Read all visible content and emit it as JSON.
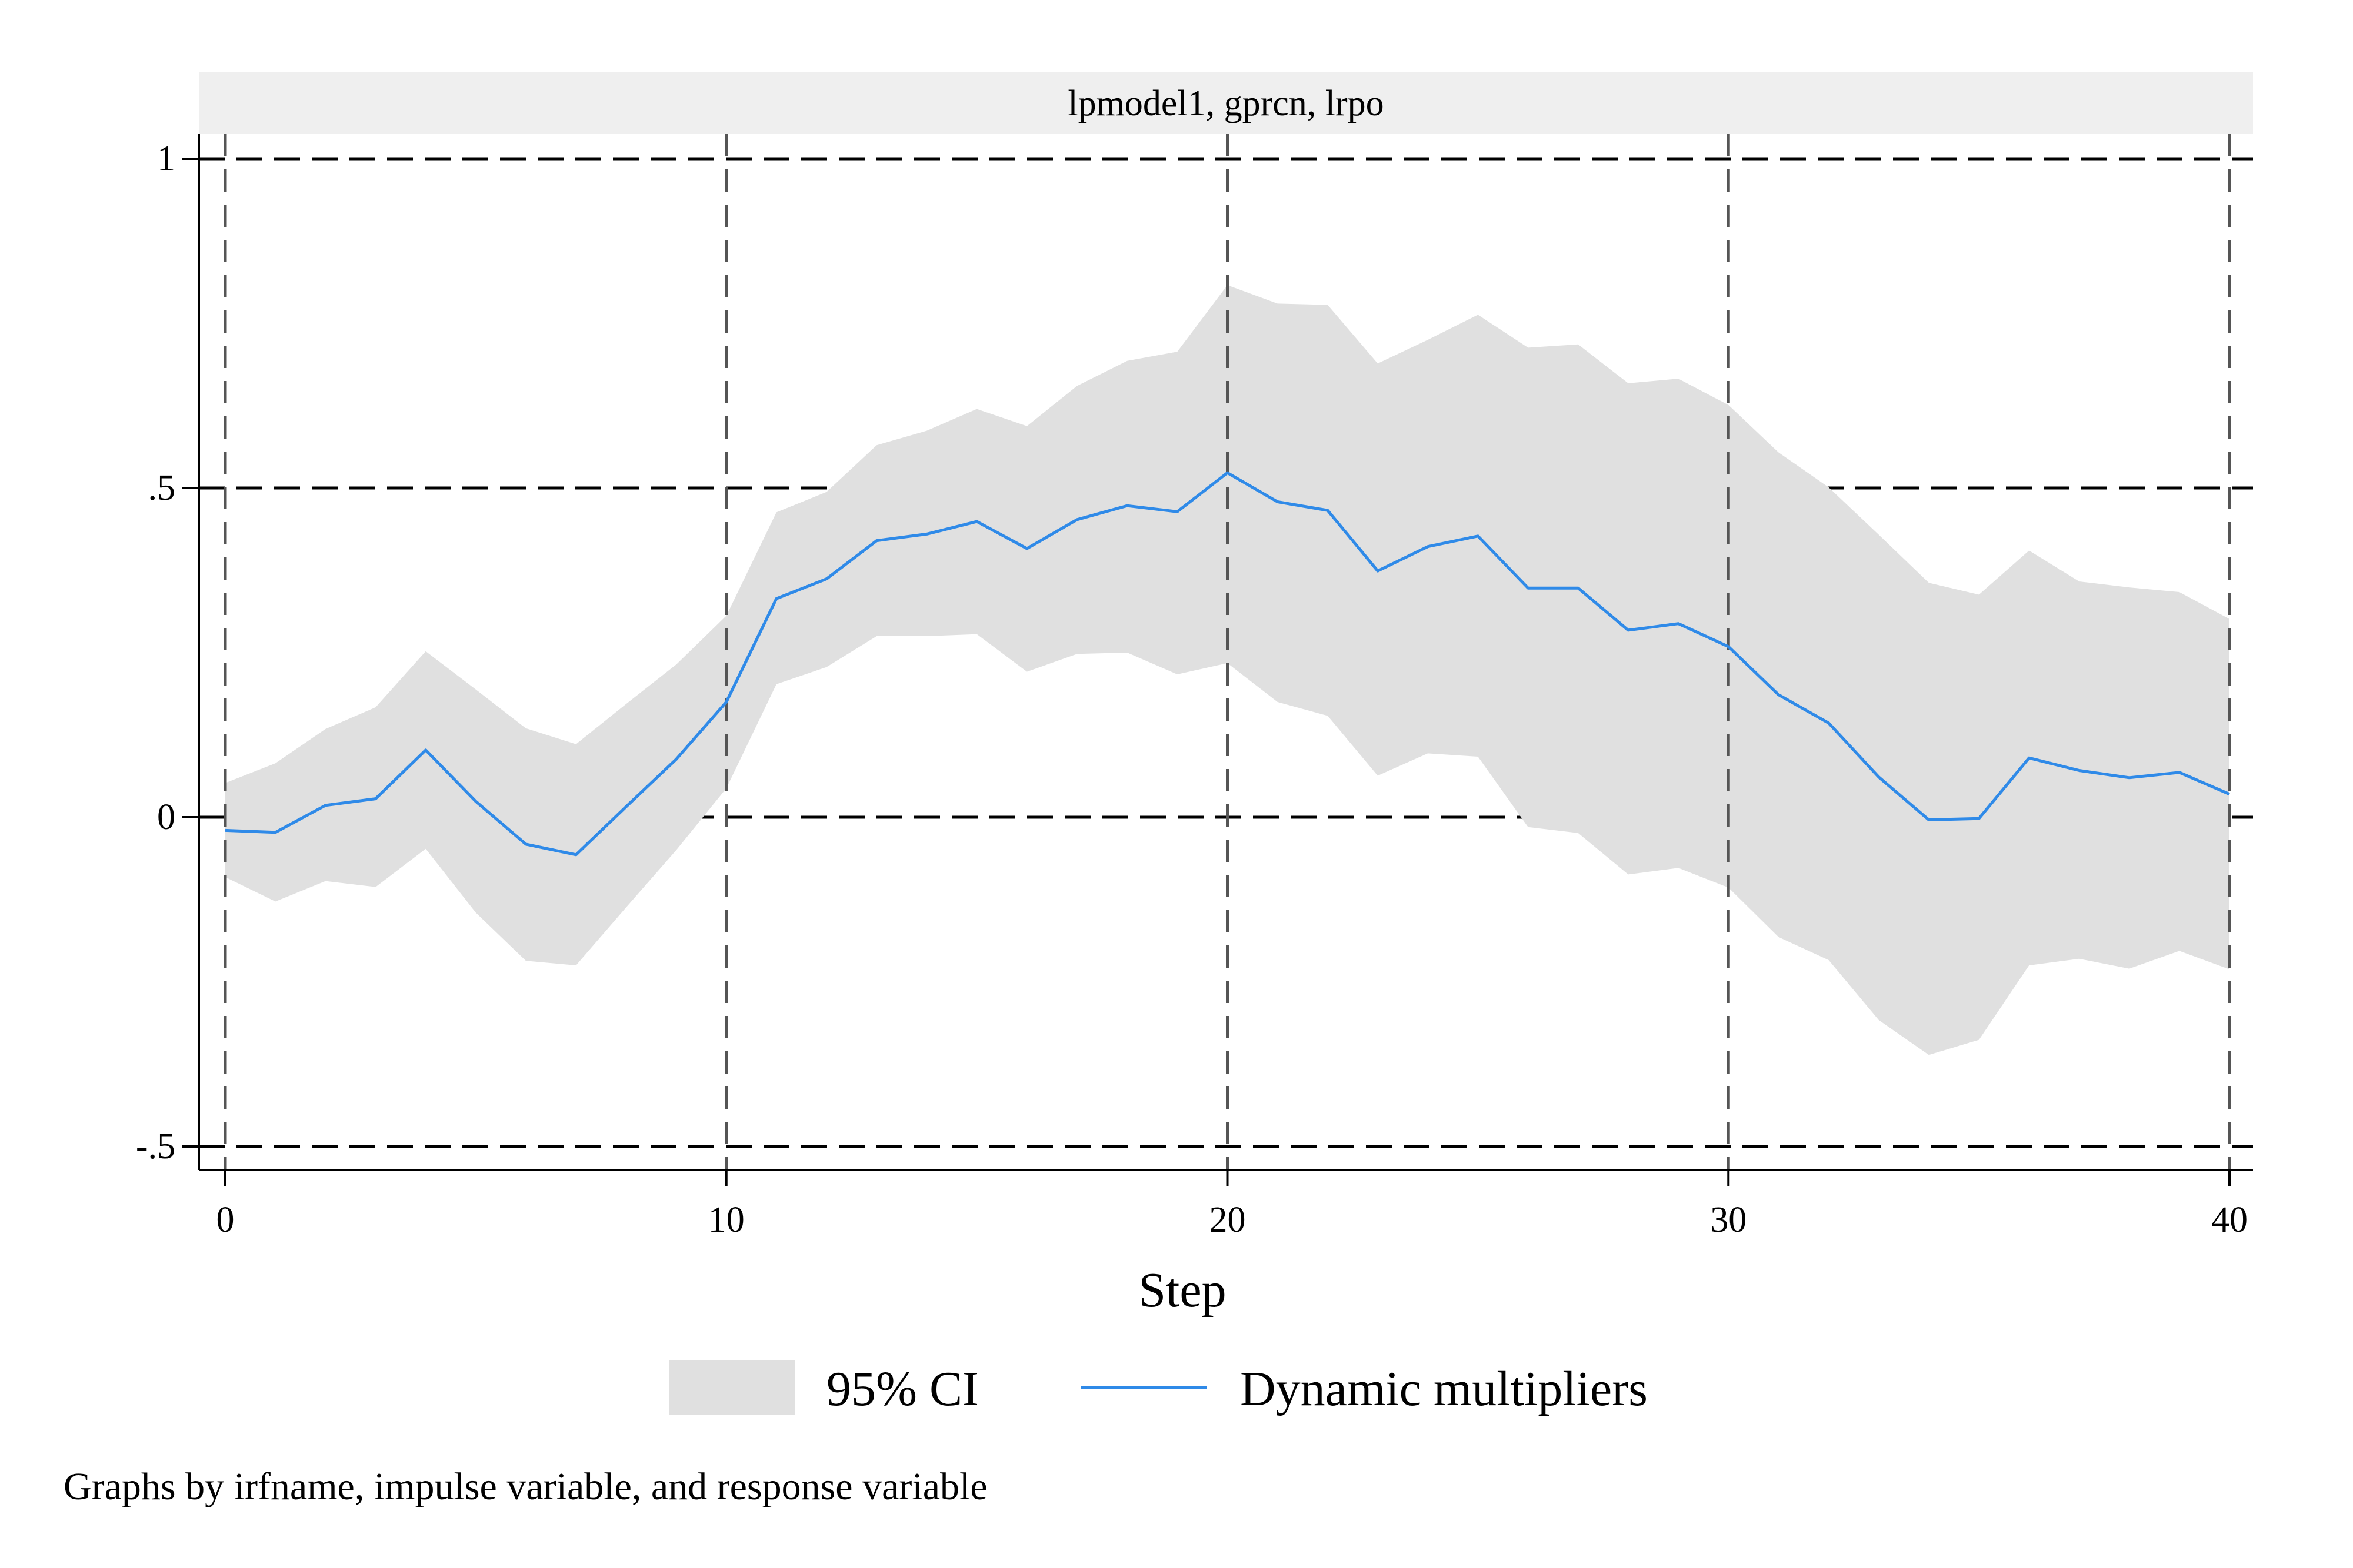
{
  "panel_title": "lpmodel1, gprcn, lrpo",
  "note": "Graphs by irfname, impulse variable, and response variable",
  "colors": {
    "ci_fill": "#e0e0e0",
    "line": "#2f8ae8",
    "strip": "#efefef",
    "grid": "#000000"
  },
  "chart_data": {
    "type": "area",
    "title": "lpmodel1, gprcn, lrpo",
    "xlabel": "Step",
    "ylabel": "",
    "xlim": [
      0,
      40
    ],
    "ylim": [
      -0.5,
      1
    ],
    "xticks": [
      0,
      10,
      20,
      30,
      40
    ],
    "xtick_labels": [
      "0",
      "10",
      "20",
      "30",
      "40"
    ],
    "yticks": [
      -0.5,
      0,
      0.5,
      1
    ],
    "ytick_labels": [
      "-.5",
      "0",
      ".5",
      "1"
    ],
    "grid": true,
    "legend_position": "bottom",
    "x": [
      0,
      1,
      2,
      3,
      4,
      5,
      6,
      7,
      8,
      9,
      10,
      11,
      12,
      13,
      14,
      15,
      16,
      17,
      18,
      19,
      20,
      21,
      22,
      23,
      24,
      25,
      26,
      27,
      28,
      29,
      30,
      31,
      32,
      33,
      34,
      35,
      36,
      37,
      38,
      39,
      40
    ],
    "series": [
      {
        "name": "95% CI",
        "kind": "band",
        "upper": [
          0.052,
          0.082,
          0.134,
          0.167,
          0.252,
          0.194,
          0.135,
          0.111,
          0.172,
          0.232,
          0.306,
          0.463,
          0.494,
          0.565,
          0.587,
          0.62,
          0.594,
          0.655,
          0.693,
          0.707,
          0.808,
          0.78,
          0.778,
          0.689,
          0.725,
          0.763,
          0.713,
          0.718,
          0.659,
          0.666,
          0.626,
          0.554,
          0.501,
          0.429,
          0.356,
          0.338,
          0.405,
          0.358,
          0.349,
          0.342,
          0.301
        ],
        "lower": [
          -0.091,
          -0.128,
          -0.097,
          -0.106,
          -0.048,
          -0.145,
          -0.218,
          -0.225,
          -0.137,
          -0.05,
          0.044,
          0.202,
          0.228,
          0.275,
          0.275,
          0.278,
          0.221,
          0.248,
          0.25,
          0.217,
          0.234,
          0.175,
          0.154,
          0.063,
          0.097,
          0.092,
          -0.015,
          -0.024,
          -0.087,
          -0.077,
          -0.107,
          -0.182,
          -0.217,
          -0.308,
          -0.361,
          -0.338,
          -0.225,
          -0.215,
          -0.23,
          -0.203,
          -0.231
        ]
      },
      {
        "name": "Dynamic multipliers",
        "kind": "line",
        "values": [
          -0.02,
          -0.023,
          0.018,
          0.028,
          0.102,
          0.024,
          -0.041,
          -0.057,
          0.016,
          0.088,
          0.175,
          0.332,
          0.362,
          0.42,
          0.43,
          0.449,
          0.408,
          0.452,
          0.473,
          0.464,
          0.523,
          0.479,
          0.466,
          0.374,
          0.411,
          0.427,
          0.348,
          0.348,
          0.284,
          0.294,
          0.259,
          0.186,
          0.143,
          0.061,
          -0.004,
          -0.002,
          0.09,
          0.071,
          0.06,
          0.068,
          0.035
        ]
      }
    ]
  }
}
